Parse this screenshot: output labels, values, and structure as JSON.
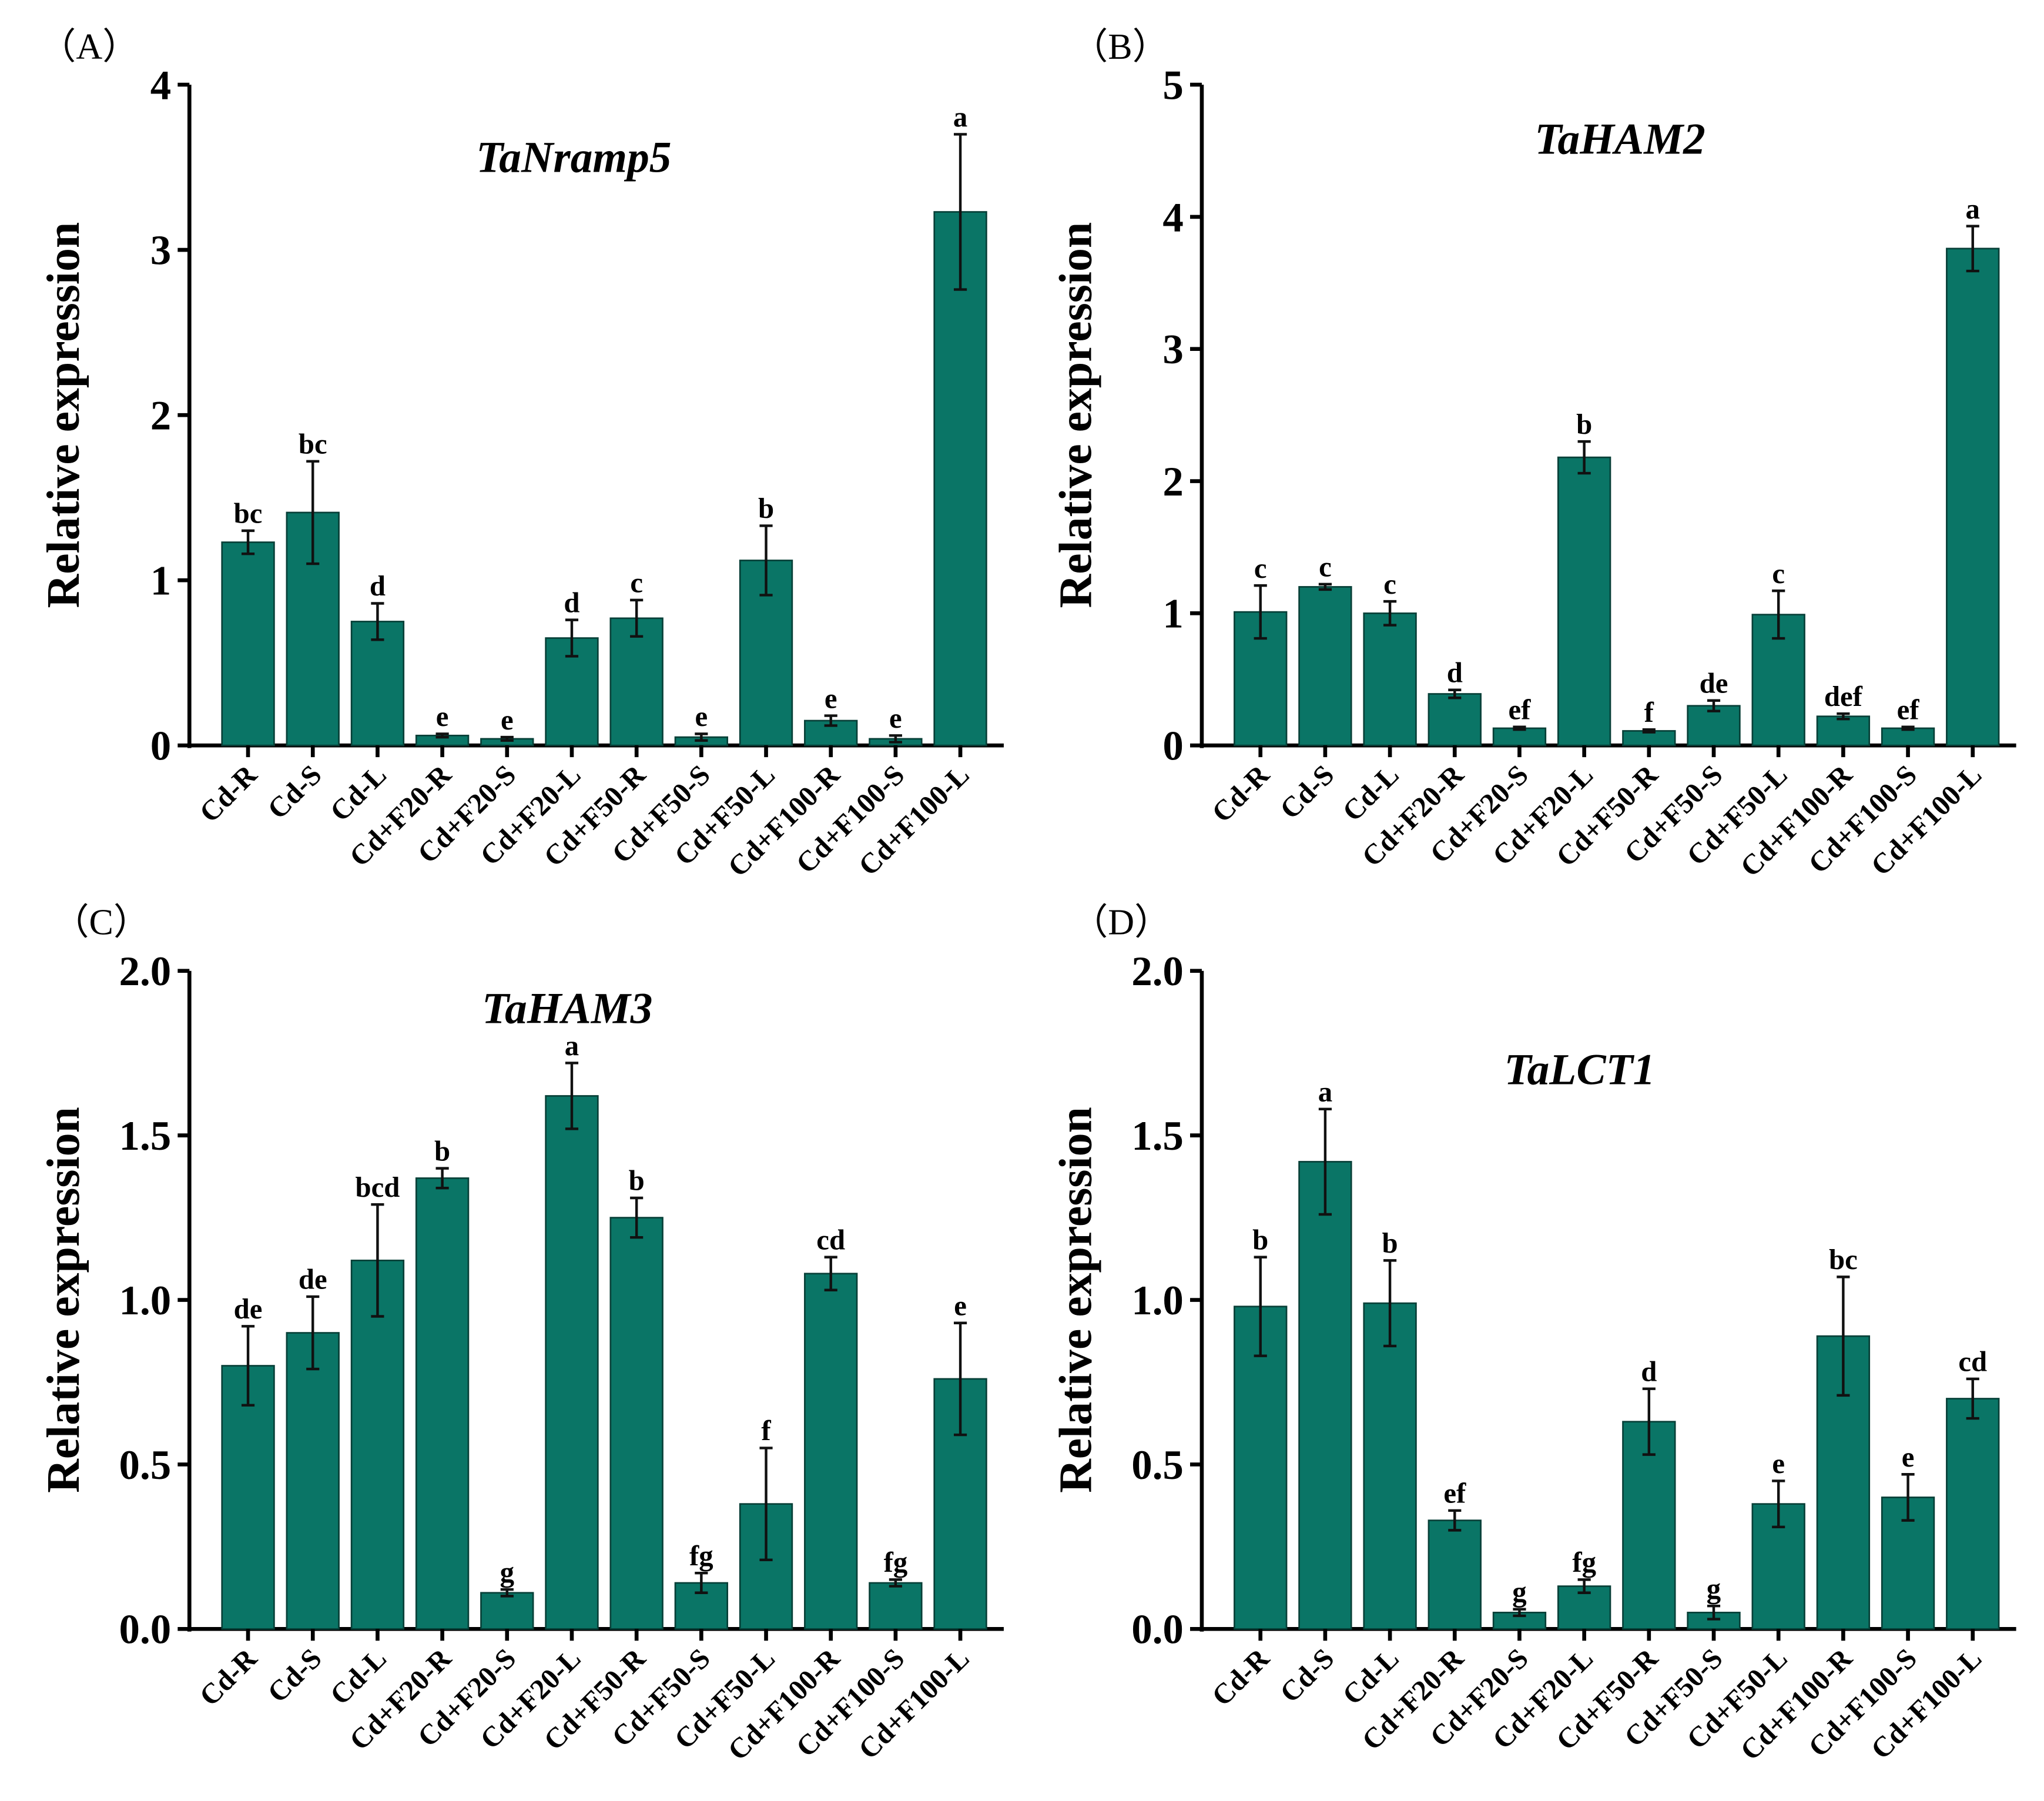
{
  "bar_color": "#0a7566",
  "chart_data": [
    {
      "type": "bar",
      "panel_label": "（A）",
      "title": "TaNramp5",
      "ylabel": "Relative expression",
      "xlabel": "",
      "ylim": [
        0,
        4
      ],
      "yticks": [
        "0",
        "1",
        "2",
        "3",
        "4"
      ],
      "categories": [
        "Cd-R",
        "Cd-S",
        "Cd-L",
        "Cd+F20-R",
        "Cd+F20-S",
        "Cd+F20-L",
        "Cd+F50-R",
        "Cd+F50-S",
        "Cd+F50-L",
        "Cd+F100-R",
        "Cd+F100-S",
        "Cd+F100-L"
      ],
      "values": [
        1.23,
        1.41,
        0.75,
        0.06,
        0.04,
        0.65,
        0.77,
        0.05,
        1.12,
        0.15,
        0.04,
        3.23
      ],
      "errors": [
        0.07,
        0.31,
        0.11,
        0.01,
        0.01,
        0.11,
        0.11,
        0.02,
        0.21,
        0.03,
        0.02,
        0.47
      ],
      "letters": [
        "bc",
        "bc",
        "d",
        "e",
        "e",
        "d",
        "c",
        "e",
        "b",
        "e",
        "e",
        "a"
      ]
    },
    {
      "type": "bar",
      "panel_label": "（B）",
      "title": "TaHAM2",
      "ylabel": "Relative expression",
      "xlabel": "",
      "ylim": [
        0,
        5
      ],
      "yticks": [
        "0",
        "1",
        "2",
        "3",
        "4",
        "5"
      ],
      "categories": [
        "Cd-R",
        "Cd-S",
        "Cd-L",
        "Cd+F20-R",
        "Cd+F20-S",
        "Cd+F20-L",
        "Cd+F50-R",
        "Cd+F50-S",
        "Cd+F50-L",
        "Cd+F100-R",
        "Cd+F100-S",
        "Cd+F100-L"
      ],
      "values": [
        1.01,
        1.2,
        1.0,
        0.39,
        0.13,
        2.18,
        0.11,
        0.3,
        0.99,
        0.22,
        0.13,
        3.76
      ],
      "errors": [
        0.2,
        0.02,
        0.09,
        0.03,
        0.01,
        0.12,
        0.01,
        0.04,
        0.18,
        0.02,
        0.01,
        0.17
      ],
      "letters": [
        "c",
        "c",
        "c",
        "d",
        "ef",
        "b",
        "f",
        "de",
        "c",
        "def",
        "ef",
        "a"
      ]
    },
    {
      "type": "bar",
      "panel_label": "（C）",
      "title": "TaHAM3",
      "ylabel": "Relative expression",
      "xlabel": "",
      "ylim": [
        0,
        2.0
      ],
      "yticks": [
        "0.0",
        "0.5",
        "1.0",
        "1.5",
        "2.0"
      ],
      "categories": [
        "Cd-R",
        "Cd-S",
        "Cd-L",
        "Cd+F20-R",
        "Cd+F20-S",
        "Cd+F20-L",
        "Cd+F50-R",
        "Cd+F50-S",
        "Cd+F50-L",
        "Cd+F100-R",
        "Cd+F100-S",
        "Cd+F100-L"
      ],
      "values": [
        0.8,
        0.9,
        1.12,
        1.37,
        0.11,
        1.62,
        1.25,
        0.14,
        0.38,
        1.08,
        0.14,
        0.76
      ],
      "errors": [
        0.12,
        0.11,
        0.17,
        0.03,
        0.01,
        0.1,
        0.06,
        0.03,
        0.17,
        0.05,
        0.01,
        0.17
      ],
      "letters": [
        "de",
        "de",
        "bcd",
        "b",
        "g",
        "a",
        "b",
        "fg",
        "f",
        "cd",
        "fg",
        "e"
      ]
    },
    {
      "type": "bar",
      "panel_label": "（D）",
      "title": "TaLCT1",
      "ylabel": "Relative expression",
      "xlabel": "",
      "ylim": [
        0,
        2.0
      ],
      "yticks": [
        "0.0",
        "0.5",
        "1.0",
        "1.5",
        "2.0"
      ],
      "categories": [
        "Cd-R",
        "Cd-S",
        "Cd-L",
        "Cd+F20-R",
        "Cd+F20-S",
        "Cd+F20-L",
        "Cd+F50-R",
        "Cd+F50-S",
        "Cd+F50-L",
        "Cd+F100-R",
        "Cd+F100-S",
        "Cd+F100-L"
      ],
      "values": [
        0.98,
        1.42,
        0.99,
        0.33,
        0.05,
        0.13,
        0.63,
        0.05,
        0.38,
        0.89,
        0.4,
        0.7
      ],
      "errors": [
        0.15,
        0.16,
        0.13,
        0.03,
        0.01,
        0.02,
        0.1,
        0.02,
        0.07,
        0.18,
        0.07,
        0.06
      ],
      "letters": [
        "b",
        "a",
        "b",
        "ef",
        "g",
        "fg",
        "d",
        "g",
        "e",
        "bc",
        "e",
        "cd"
      ]
    }
  ]
}
